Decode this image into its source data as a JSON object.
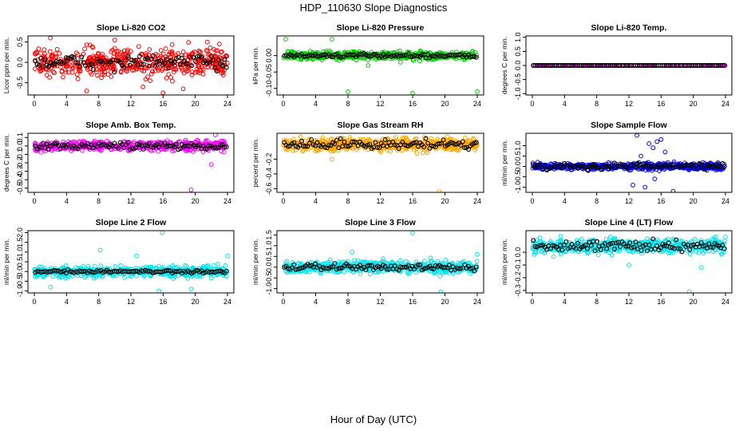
{
  "figure": {
    "title": "HDP_110630  Slope Diagnostics",
    "xlabel": "Hour of Day (UTC)"
  },
  "chart_data": [
    {
      "type": "scatter",
      "title": "Slope Li-820 CO2",
      "ylabel": "Licor ppm per min.",
      "xlim": [
        0,
        24
      ],
      "xticks": [
        0,
        4,
        8,
        12,
        16,
        20,
        24
      ],
      "ylim": [
        -0.8,
        0.65
      ],
      "yticks": [
        -0.5,
        0.0,
        0.5
      ],
      "ytick_labels": [
        "-0.5",
        "0.0",
        "0.5"
      ],
      "color": "#ff0000",
      "series": [
        {
          "name": "",
          "center": 0.0,
          "spread": 0.25,
          "n": 500,
          "outliers": [
            [
              2.0,
              0.6
            ],
            [
              6.5,
              -0.7
            ],
            [
              10.0,
              0.55
            ],
            [
              13.5,
              -0.6
            ],
            [
              16.0,
              -0.75
            ],
            [
              18.5,
              -0.65
            ],
            [
              21.5,
              0.5
            ],
            [
              23.0,
              0.45
            ]
          ]
        }
      ],
      "smoothed": {
        "center": 0.0,
        "spread": 0.12,
        "n": 100,
        "color": "#000000"
      }
    },
    {
      "type": "scatter",
      "title": "Slope Li-820 Pressure",
      "ylabel": "kPa per min.",
      "xlim": [
        0,
        24
      ],
      "xticks": [
        0,
        4,
        8,
        12,
        16,
        20,
        24
      ],
      "ylim": [
        -0.12,
        0.06
      ],
      "yticks": [
        -0.1,
        -0.05,
        0.0
      ],
      "ytick_labels": [
        "-0.10",
        "-0.05",
        "0.00"
      ],
      "color": "#00cc00",
      "series": [
        {
          "name": "",
          "center": 0.0,
          "spread": 0.008,
          "n": 500,
          "outliers": [
            [
              0.3,
              0.05
            ],
            [
              6.0,
              0.05
            ],
            [
              8.0,
              -0.11
            ],
            [
              16.0,
              -0.115
            ],
            [
              24.0,
              -0.11
            ],
            [
              10.5,
              -0.03
            ],
            [
              14.5,
              -0.02
            ]
          ]
        }
      ],
      "smoothed": {
        "center": 0.0,
        "spread": 0.004,
        "n": 100,
        "color": "#000000"
      }
    },
    {
      "type": "scatter",
      "title": "Slope Li-820 Temp.",
      "ylabel": "degrees C per min.",
      "xlim": [
        0,
        24
      ],
      "xticks": [
        0,
        4,
        8,
        12,
        16,
        20,
        24
      ],
      "ylim": [
        -1.05,
        1.05
      ],
      "yticks": [
        -1.0,
        -0.5,
        0.0,
        0.5,
        1.0
      ],
      "ytick_labels": [
        "-1.0",
        "-0.5",
        "0.0",
        "0.5",
        "1.0"
      ],
      "color": "#ee00ee",
      "series": [
        {
          "name": "",
          "center": 0.0,
          "spread": 0.0,
          "n": 150,
          "outliers": []
        }
      ],
      "smoothed": {
        "center": 0.0,
        "spread": 0.0,
        "n": 100,
        "color": "#000000"
      }
    },
    {
      "type": "scatter",
      "title": "Slope Amb. Box Temp.",
      "ylabel": "degrees C per min.",
      "xlim": [
        0,
        24
      ],
      "xticks": [
        0,
        4,
        8,
        12,
        16,
        20,
        24
      ],
      "ylim": [
        -0.55,
        0.15
      ],
      "yticks": [
        -0.5,
        -0.4,
        -0.3,
        -0.2,
        -0.1,
        0.0,
        0.1
      ],
      "ytick_labels": [
        "-0.5",
        "-0.4",
        "-0.3",
        "-0.2",
        "-0.1",
        "0.0",
        "0.1"
      ],
      "color": "#ff00ff",
      "series": [
        {
          "name": "",
          "center": 0.0,
          "spread": 0.04,
          "n": 500,
          "outliers": [
            [
              19.5,
              -0.52
            ],
            [
              22.0,
              -0.22
            ],
            [
              22.5,
              0.13
            ]
          ]
        }
      ],
      "smoothed": {
        "center": 0.0,
        "spread": 0.03,
        "n": 100,
        "color": "#000000"
      }
    },
    {
      "type": "scatter",
      "title": "Slope Gas Stream RH",
      "ylabel": "percent per min.",
      "xlim": [
        0,
        24
      ],
      "xticks": [
        0,
        4,
        8,
        12,
        16,
        20,
        24
      ],
      "ylim": [
        -0.65,
        0.15
      ],
      "yticks": [
        -0.6,
        -0.4,
        -0.2
      ],
      "ytick_labels": [
        "-0.6",
        "-0.4",
        "-0.2"
      ],
      "color": "#ffa500",
      "series": [
        {
          "name": "",
          "center": 0.0,
          "spread": 0.06,
          "n": 500,
          "outliers": [
            [
              19.3,
              -0.64
            ],
            [
              6.0,
              -0.2
            ]
          ]
        }
      ],
      "smoothed": {
        "center": 0.0,
        "spread": 0.04,
        "n": 100,
        "color": "#000000"
      }
    },
    {
      "type": "scatter",
      "title": "Slope Sample Flow",
      "ylabel": "ml/min per min.",
      "xlim": [
        0,
        24
      ],
      "xticks": [
        0,
        4,
        8,
        12,
        16,
        20,
        24
      ],
      "ylim": [
        -1.25,
        1.6
      ],
      "yticks": [
        -1.0,
        -0.5,
        0.0,
        0.5,
        1.0
      ],
      "ytick_labels": [
        "-1.0",
        "-0.5",
        "0.0",
        "0.5",
        "1.0"
      ],
      "color": "#0000ff",
      "series": [
        {
          "name": "",
          "center": 0.0,
          "spread": 0.12,
          "n": 500,
          "outliers": [
            [
              13.0,
              1.5
            ],
            [
              14.5,
              1.1
            ],
            [
              15.0,
              0.9
            ],
            [
              15.5,
              1.2
            ],
            [
              16.0,
              1.3
            ],
            [
              12.5,
              -0.9
            ],
            [
              14.0,
              -1.0
            ],
            [
              17.5,
              -1.2
            ],
            [
              13.5,
              0.5
            ],
            [
              16.5,
              0.7
            ],
            [
              15.2,
              -0.6
            ]
          ]
        }
      ],
      "smoothed": {
        "center": 0.0,
        "spread": 0.1,
        "n": 100,
        "color": "#000000"
      }
    },
    {
      "type": "scatter",
      "title": "Slope Line 2 Flow",
      "ylabel": "ml/min per min.",
      "xlim": [
        0,
        24
      ],
      "xticks": [
        0,
        4,
        8,
        12,
        16,
        20,
        24
      ],
      "ylim": [
        -1.1,
        2.1
      ],
      "yticks": [
        -1.0,
        -0.5,
        0.0,
        0.5,
        1.0,
        1.5,
        2.0
      ],
      "ytick_labels": [
        "-1.0",
        "-0.5",
        "0.0",
        "0.5",
        "1.0",
        "1.5",
        "2.0"
      ],
      "color": "#00e5ee",
      "series": [
        {
          "name": "",
          "center": 0.0,
          "spread": 0.2,
          "n": 500,
          "outliers": [
            [
              15.9,
              2.0
            ],
            [
              8.2,
              1.1
            ],
            [
              12.7,
              0.8
            ],
            [
              15.5,
              -1.0
            ],
            [
              19.5,
              -0.9
            ],
            [
              2.0,
              -0.8
            ],
            [
              24.0,
              0.8
            ]
          ]
        }
      ],
      "smoothed": {
        "center": 0.0,
        "spread": 0.05,
        "n": 100,
        "color": "#000000"
      }
    },
    {
      "type": "scatter",
      "title": "Slope Line 3 Flow",
      "ylabel": "ml/min per min.",
      "xlim": [
        0,
        24
      ],
      "xticks": [
        0,
        4,
        8,
        12,
        16,
        20,
        24
      ],
      "ylim": [
        -1.2,
        1.7
      ],
      "yticks": [
        -1.0,
        -0.5,
        0.0,
        0.5,
        1.0,
        1.5
      ],
      "ytick_labels": [
        "-1.0",
        "-0.5",
        "0.0",
        "0.5",
        "1.0",
        "1.5"
      ],
      "color": "#00e5ee",
      "series": [
        {
          "name": "",
          "center": 0.0,
          "spread": 0.2,
          "n": 500,
          "outliers": [
            [
              16.0,
              1.6
            ],
            [
              19.5,
              -1.15
            ],
            [
              24.0,
              0.6
            ],
            [
              8.5,
              0.7
            ]
          ]
        }
      ],
      "smoothed": {
        "center": 0.0,
        "spread": 0.1,
        "n": 100,
        "color": "#000000"
      }
    },
    {
      "type": "scatter",
      "title": "Slope Line 4 (LT) Flow",
      "ylabel": "ml/min per min.",
      "xlim": [
        0,
        24
      ],
      "xticks": [
        0,
        4,
        8,
        12,
        16,
        20,
        24
      ],
      "ylim": [
        -0.32,
        0.17
      ],
      "yticks": [
        -0.3,
        -0.2,
        -0.1,
        0.0
      ],
      "ytick_labels": [
        "-0.3",
        "-0.2",
        "-0.1",
        "0.0"
      ],
      "color": "#00e5ee",
      "series": [
        {
          "name": "",
          "center": 0.05,
          "spread": 0.04,
          "n": 500,
          "outliers": [
            [
              19.5,
              -0.31
            ],
            [
              12.0,
              -0.1
            ],
            [
              21.0,
              -0.12
            ],
            [
              24.0,
              0.12
            ]
          ]
        }
      ],
      "smoothed": {
        "center": 0.05,
        "spread": 0.03,
        "n": 100,
        "color": "#000000"
      }
    }
  ]
}
